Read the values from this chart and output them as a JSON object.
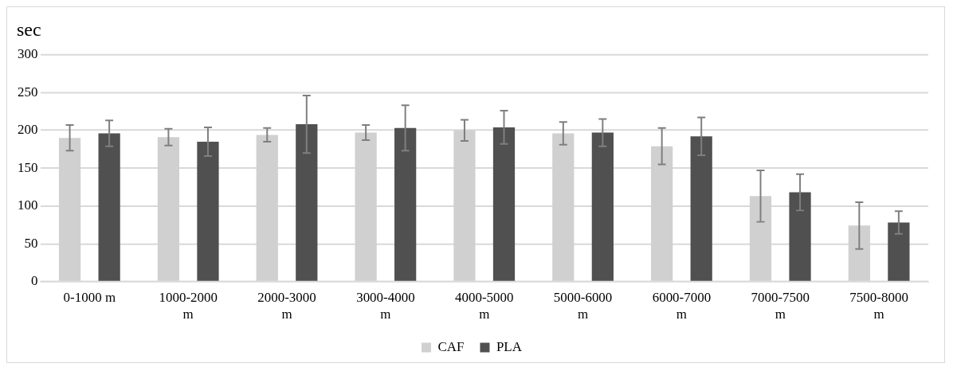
{
  "chart_data": {
    "type": "bar",
    "ylabel": "sec",
    "categories": [
      "0-1000 m",
      "1000-2000 m",
      "2000-3000 m",
      "3000-4000 m",
      "4000-5000 m",
      "5000-6000 m",
      "6000-7000 m",
      "7000-7500 m",
      "7500-8000 m"
    ],
    "series": [
      {
        "name": "CAF",
        "color": "#d0d0d0",
        "values": [
          190,
          191,
          194,
          197,
          200,
          196,
          179,
          113,
          74
        ],
        "errors": [
          17,
          11,
          9,
          10,
          14,
          15,
          24,
          34,
          31
        ]
      },
      {
        "name": "PLA",
        "color": "#505050",
        "values": [
          196,
          185,
          208,
          203,
          204,
          197,
          192,
          118,
          78
        ],
        "errors": [
          17,
          19,
          38,
          30,
          22,
          18,
          25,
          24,
          15
        ]
      }
    ],
    "ylim": [
      0,
      300
    ],
    "yticks": [
      0,
      50,
      100,
      150,
      200,
      250,
      300
    ],
    "grid": "y",
    "legend": "bottom"
  }
}
